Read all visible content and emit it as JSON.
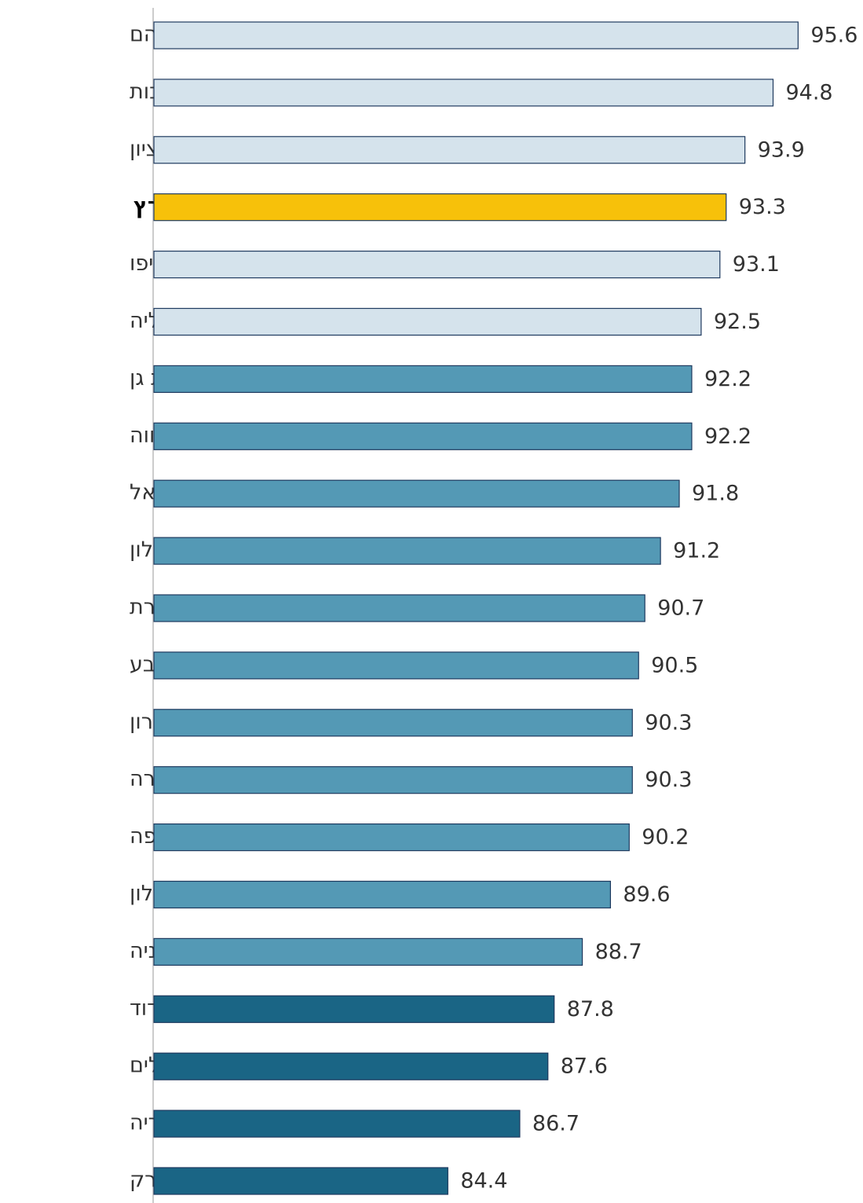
{
  "chart_data": {
    "type": "bar",
    "orientation": "horizontal",
    "categories": [
      "שוהם",
      "רחובות",
      "ראשון לציון",
      "שאר הארץ",
      "תל אביב-יפו",
      "הרצליה",
      "רמת גן",
      "פתח תקווה",
      "כרמיאל",
      "חולון",
      "נצרת",
      "באר שבע",
      "הוד השרון",
      "חדרה",
      "חיפה",
      "אשקלון",
      "נתניה",
      "אשדוד",
      "ירושלים",
      "טבריה",
      "בני ברק"
    ],
    "values": [
      95.6,
      94.8,
      93.9,
      93.3,
      93.1,
      92.5,
      92.2,
      92.2,
      91.8,
      91.2,
      90.7,
      90.5,
      90.3,
      90.3,
      90.2,
      89.6,
      88.7,
      87.8,
      87.6,
      86.7,
      84.4
    ],
    "colors": [
      "#d5e3ec",
      "#d5e3ec",
      "#d5e3ec",
      "#f7c10a",
      "#d5e3ec",
      "#d5e3ec",
      "#5499b5",
      "#5499b5",
      "#5499b5",
      "#5499b5",
      "#5499b5",
      "#5499b5",
      "#5499b5",
      "#5499b5",
      "#5499b5",
      "#5499b5",
      "#5499b5",
      "#1a6585",
      "#1a6585",
      "#1a6585",
      "#1a6585"
    ],
    "bold_categories": [
      3
    ],
    "xlim": [
      75,
      97.5
    ]
  }
}
